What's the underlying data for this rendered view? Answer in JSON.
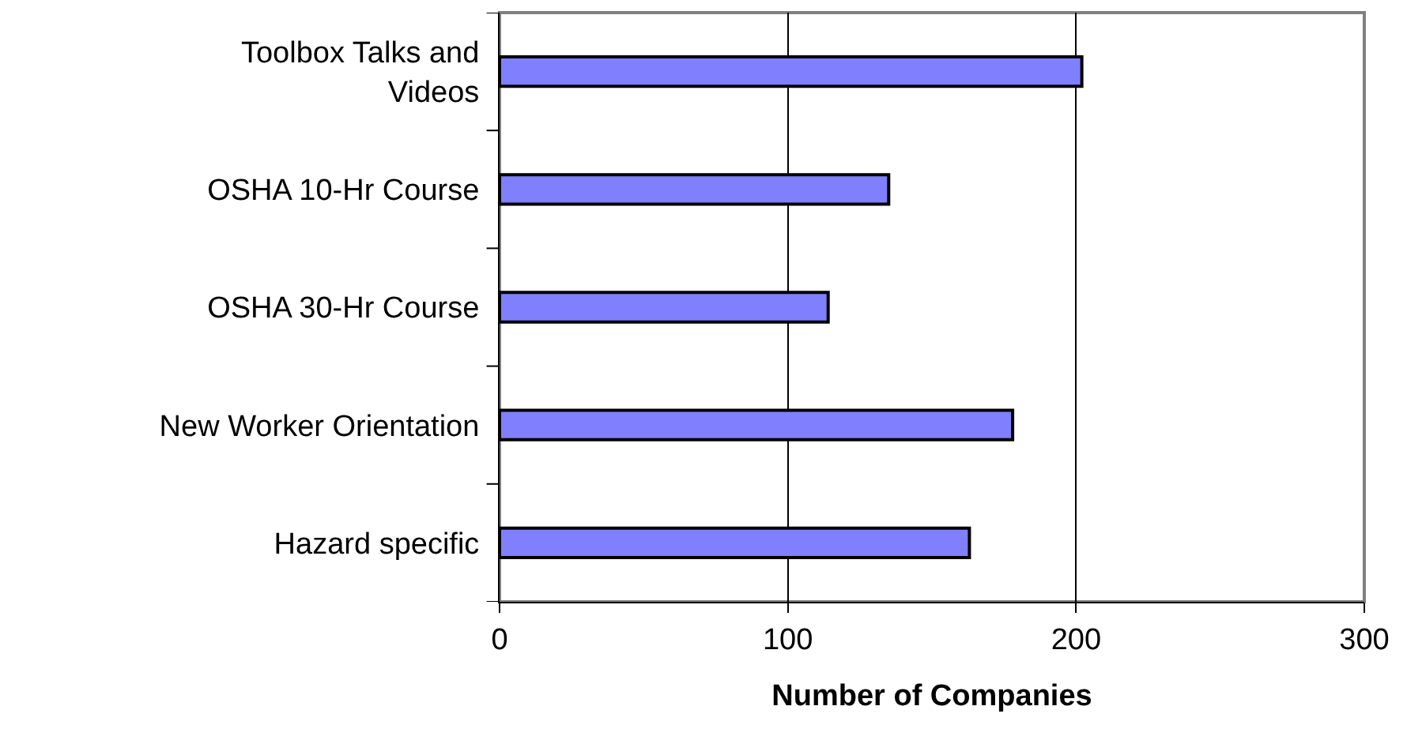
{
  "chart_data": {
    "type": "bar",
    "orientation": "horizontal",
    "xlabel": "Number of Companies",
    "categories": [
      "Toolbox Talks and Videos",
      "OSHA 10-Hr Course",
      "OSHA 30-Hr Course",
      "New Worker Orientation",
      "Hazard specific"
    ],
    "values": [
      202,
      135,
      114,
      178,
      163
    ],
    "color": "#8080ff",
    "xlim": [
      0,
      300
    ],
    "xticks": [
      0,
      100,
      200,
      300
    ],
    "grid": "x",
    "legend": false
  }
}
